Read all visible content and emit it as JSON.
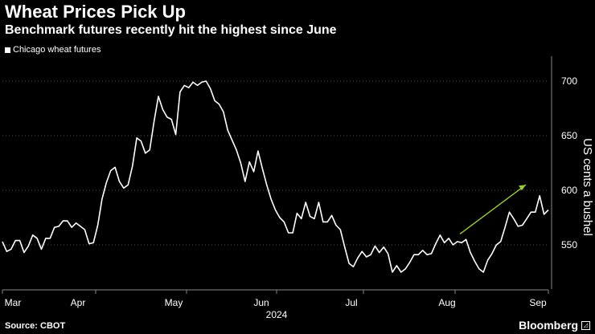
{
  "title": "Wheat Prices Pick Up",
  "subtitle": "Benchmark futures recently hit the highest since June",
  "source": "Source: CBOT",
  "brand": "Bloomberg",
  "colors": {
    "background": "#000000",
    "line": "#ffffff",
    "trend_arrow": "#99cc33",
    "grid": "#555555"
  },
  "chart_data": {
    "type": "line",
    "title": "Wheat Prices Pick Up",
    "subtitle": "Benchmark futures recently hit the highest since June",
    "ylabel": "US cents a bushel",
    "xlabel": "2024",
    "ylim": [
      520,
      720
    ],
    "y_ticks": [
      550,
      600,
      650,
      700
    ],
    "x_tick_labels": [
      "Mar",
      "Apr",
      "May",
      "Jun",
      "Jul",
      "Aug",
      "Sep"
    ],
    "x_sub_label": "2024",
    "grid": "horizontal dotted",
    "legend_position": "top-left",
    "series": [
      {
        "name": "Chicago wheat futures",
        "values": [
          553,
          544,
          546,
          554,
          554,
          543,
          549,
          559,
          556,
          546,
          556,
          556,
          566,
          567,
          572,
          572,
          566,
          570,
          567,
          564,
          551,
          552,
          568,
          592,
          607,
          618,
          621,
          608,
          602,
          605,
          622,
          648,
          645,
          634,
          637,
          663,
          686,
          674,
          667,
          665,
          651,
          690,
          696,
          694,
          699,
          696,
          699,
          700,
          693,
          682,
          679,
          672,
          655,
          646,
          637,
          625,
          608,
          626,
          617,
          636,
          620,
          605,
          592,
          582,
          575,
          571,
          561,
          561,
          579,
          574,
          589,
          576,
          574,
          589,
          571,
          571,
          577,
          568,
          564,
          548,
          533,
          530,
          538,
          544,
          539,
          541,
          549,
          543,
          548,
          542,
          525,
          531,
          525,
          528,
          534,
          541,
          541,
          545,
          541,
          542,
          551,
          559,
          552,
          556,
          550,
          553,
          552,
          555,
          543,
          535,
          528,
          525,
          536,
          542,
          550,
          553,
          566,
          580,
          574,
          567,
          568,
          574,
          580,
          580,
          595,
          578,
          582
        ]
      }
    ],
    "annotations": [
      {
        "type": "arrow",
        "description": "upward trend arrow",
        "from": [
          572,
          560
        ],
        "to": [
          604,
          605
        ]
      }
    ]
  }
}
